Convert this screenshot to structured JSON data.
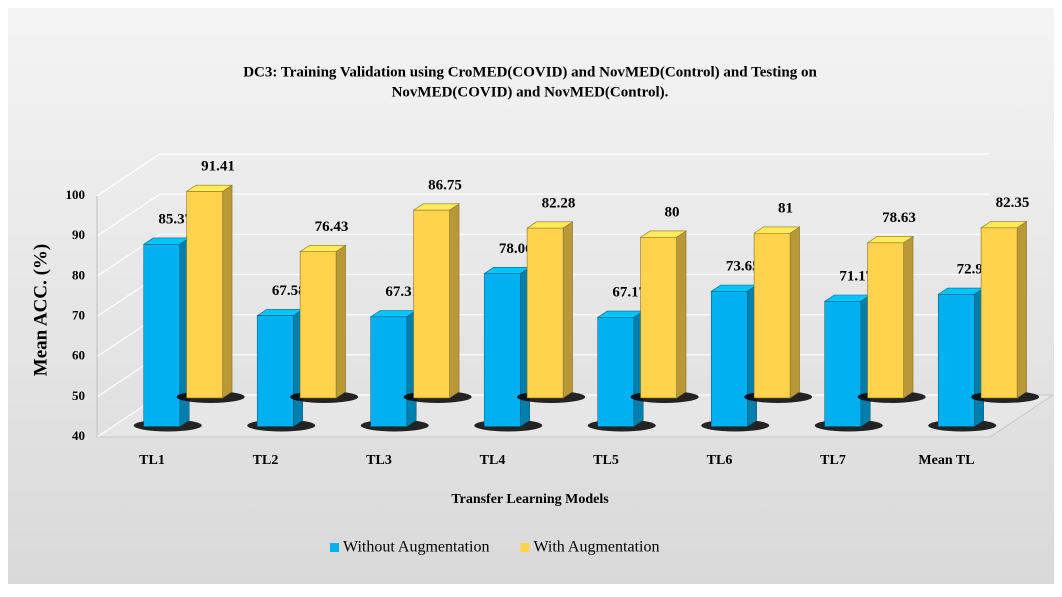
{
  "chart_data": {
    "type": "bar3d",
    "title": [
      "DC3: Training Validation using CroMED(COVID) and NovMED(Control) and Testing on",
      "NovMED(COVID) and NovMED(Control)."
    ],
    "y_label": "Mean ACC. (%)",
    "x_label": "Transfer Learning Models",
    "categories": [
      "TL1",
      "TL2",
      "TL3",
      "TL4",
      "TL5",
      "TL6",
      "TL7",
      "Mean TL"
    ],
    "series": [
      {
        "name": "Without Augmentation",
        "color": "#00b0f0",
        "values": [
          85.37,
          67.58,
          67.31,
          78.06,
          67.17,
          73.65,
          71.17,
          72.9
        ]
      },
      {
        "name": "With Augmentation",
        "color": "#ffd34d",
        "values": [
          91.41,
          76.43,
          86.75,
          82.28,
          80,
          81,
          78.63,
          82.35
        ]
      }
    ],
    "ylim": [
      40,
      100
    ],
    "yticks": [
      40,
      50,
      60,
      70,
      80,
      90,
      100
    ],
    "grid": true
  }
}
